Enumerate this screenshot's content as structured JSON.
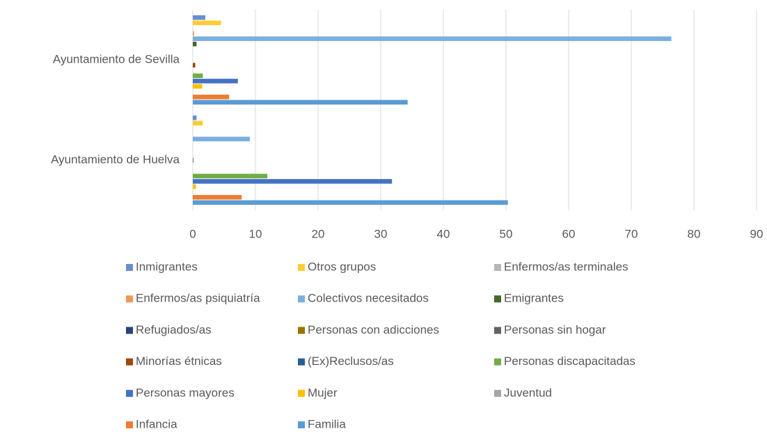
{
  "chart_data": {
    "type": "bar",
    "orientation": "horizontal",
    "categories": [
      "Ayuntamiento de Sevilla",
      "Ayuntamiento de Huelva"
    ],
    "series": [
      {
        "name": "Inmigrantes",
        "color": "#698ED0",
        "values": [
          2.0,
          0.6
        ]
      },
      {
        "name": "Otros grupos",
        "color": "#FFCD33",
        "values": [
          4.5,
          1.6
        ]
      },
      {
        "name": "Enfermos/as terminales",
        "color": "#B7B7B7",
        "values": [
          0,
          0
        ]
      },
      {
        "name": "Enfermos/as psiquiatría",
        "color": "#F1975A",
        "values": [
          0.2,
          0
        ]
      },
      {
        "name": "Colectivos necesitados",
        "color": "#7CAFDD",
        "values": [
          76.4,
          9.1
        ]
      },
      {
        "name": "Emigrantes",
        "color": "#43682B",
        "values": [
          0.6,
          0
        ]
      },
      {
        "name": "Refugiados/as",
        "color": "#264478",
        "values": [
          0,
          0
        ]
      },
      {
        "name": "Personas con adicciones",
        "color": "#997300",
        "values": [
          0,
          0
        ]
      },
      {
        "name": "Personas sin hogar",
        "color": "#636363",
        "values": [
          0,
          0.1
        ]
      },
      {
        "name": "Minorías étnicas",
        "color": "#9E480E",
        "values": [
          0.4,
          0
        ]
      },
      {
        "name": "(Ex)Reclusos/as",
        "color": "#255E91",
        "values": [
          0,
          0
        ]
      },
      {
        "name": "Personas discapacitadas",
        "color": "#70AD47",
        "values": [
          1.6,
          11.9
        ]
      },
      {
        "name": "Personas mayores",
        "color": "#4472C4",
        "values": [
          7.2,
          31.8
        ]
      },
      {
        "name": "Mujer",
        "color": "#FFC000",
        "values": [
          1.5,
          0.5
        ]
      },
      {
        "name": "Juventud",
        "color": "#A5A5A5",
        "values": [
          0,
          0
        ]
      },
      {
        "name": "Infancia",
        "color": "#ED7D31",
        "values": [
          5.8,
          7.8
        ]
      },
      {
        "name": "Familia",
        "color": "#5B9BD5",
        "values": [
          34.3,
          50.3
        ]
      }
    ],
    "xlim": [
      0,
      90
    ],
    "xticks": [
      0,
      10,
      20,
      30,
      40,
      50,
      60,
      70,
      80,
      90
    ],
    "grid": true,
    "legend": "bottom"
  }
}
